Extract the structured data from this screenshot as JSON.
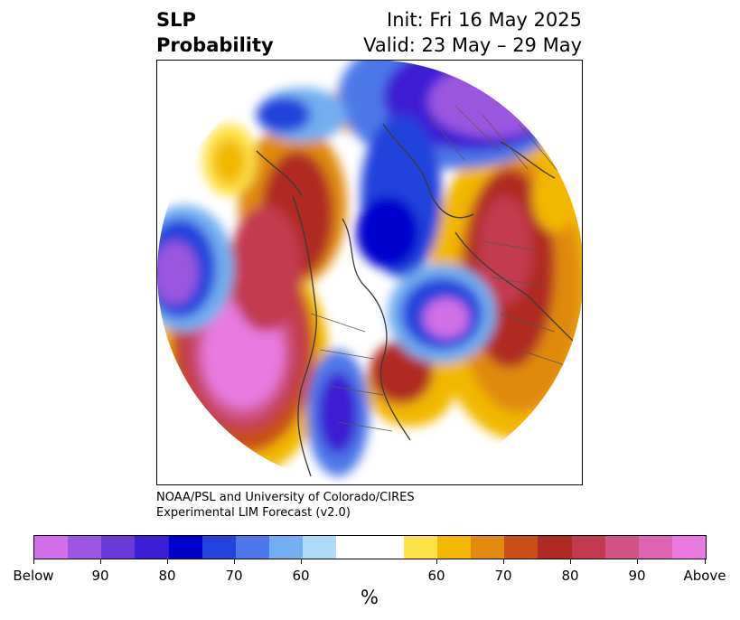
{
  "title": {
    "left_line1": "SLP",
    "left_line2": "Probability",
    "right_line1": "Init: Fri 16 May 2025",
    "right_line2": "Valid: 23 May – 29 May"
  },
  "credit": {
    "line1": "NOAA/PSL and University of Colorado/CIRES",
    "line2": "Experimental LIM Forecast (v2.0)"
  },
  "colorbar": {
    "colors": [
      "#d36fe8",
      "#9b57e0",
      "#6a3ad8",
      "#3c1fd4",
      "#0000cc",
      "#2442dc",
      "#4e78e8",
      "#72aef0",
      "#aedcf8",
      "#ffffff",
      "#ffffff",
      "#fde24a",
      "#f2b800",
      "#e08a10",
      "#c85018",
      "#b02a24",
      "#c23a50",
      "#d05484",
      "#dc64b0",
      "#e87ae0"
    ],
    "tick_labels": [
      "Below",
      "90",
      "80",
      "70",
      "60",
      "60",
      "70",
      "80",
      "90",
      "Above"
    ],
    "units": "%"
  }
}
